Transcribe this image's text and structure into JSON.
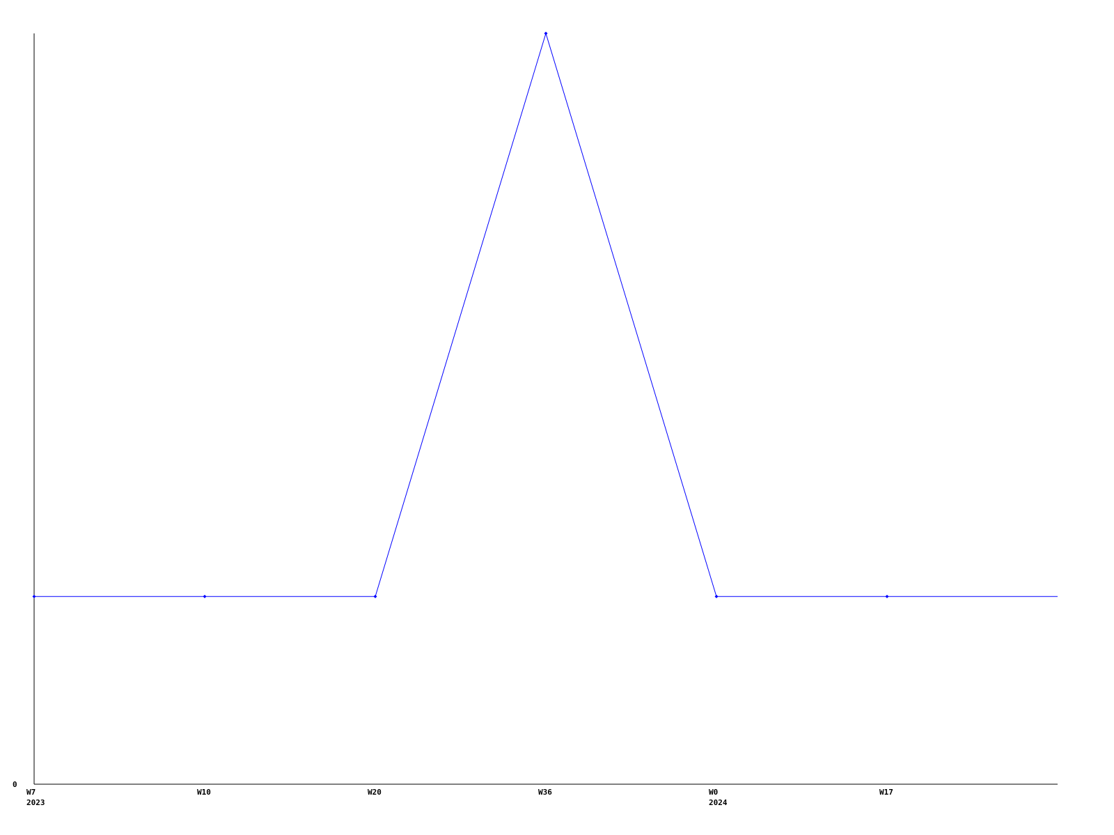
{
  "chart_data": {
    "type": "line",
    "title": "",
    "xlabel": "",
    "ylabel": "",
    "categories": [
      {
        "week": "W7",
        "year": "2023"
      },
      {
        "week": "W10",
        "year": ""
      },
      {
        "week": "W20",
        "year": ""
      },
      {
        "week": "W36",
        "year": ""
      },
      {
        "week": "W0",
        "year": "2024"
      },
      {
        "week": "W17",
        "year": ""
      }
    ],
    "series": [
      {
        "values": [
          1,
          1,
          1,
          4,
          1,
          1
        ],
        "trailing_value": 1
      }
    ],
    "y_tick_labels": [
      "0"
    ],
    "ylim": [
      0,
      4
    ],
    "grid": false,
    "legend": "none",
    "colors": {
      "line": "#0000ff",
      "axis": "#000000"
    }
  }
}
